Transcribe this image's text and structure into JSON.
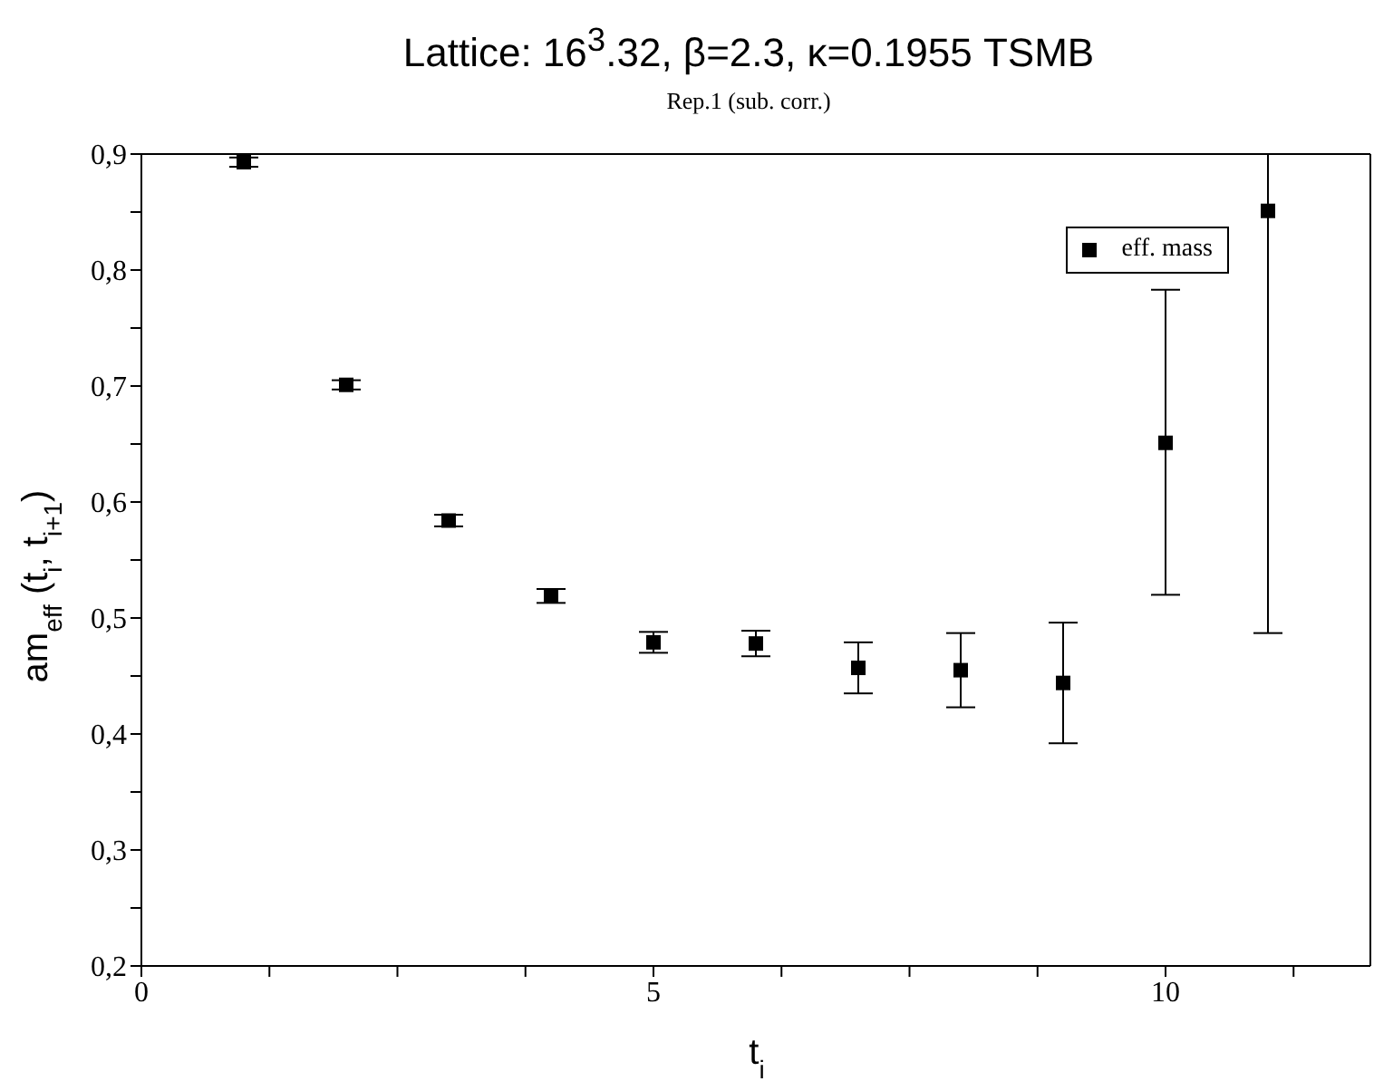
{
  "chart_data": {
    "type": "scatter",
    "title": "Lattice: 16$^{3}$.32, β=2.3, κ=0.1955 TSMB",
    "subtitle": "Rep.1 (sub. corr.)",
    "xlabel": "t$_{i}$",
    "ylabel": "am$_{eff}$ (t$_{i}$, t$_{i+1}$)",
    "x": [
      1,
      2,
      3,
      4,
      5,
      6,
      7,
      8,
      9,
      10,
      11
    ],
    "series": [
      {
        "name": "eff. mass",
        "color": "#000000",
        "values": [
          0.893,
          0.701,
          0.584,
          0.519,
          0.479,
          0.478,
          0.457,
          0.455,
          0.444,
          0.651,
          0.851
        ],
        "errors": [
          0.004,
          0.004,
          0.005,
          0.006,
          0.009,
          0.011,
          0.022,
          0.032,
          0.052,
          [
            0.52,
            0.783
          ],
          [
            0.487,
            0.9
          ]
        ]
      }
    ],
    "xlim": [
      0,
      12
    ],
    "xticks": [
      0,
      {
        "value": 1.25,
        "label": null
      },
      {
        "value": 2.5,
        "label": null
      },
      {
        "value": 3.75,
        "label": null
      },
      5,
      {
        "value": 6.25,
        "label": null
      },
      {
        "value": 7.5,
        "label": null
      },
      {
        "value": 8.75,
        "label": null
      },
      10,
      {
        "value": 11.25,
        "label": null
      }
    ],
    "ylim": [
      0.2,
      0.9
    ],
    "yticks": [
      {
        "value": 0.2,
        "label": "0,2"
      },
      {
        "value": 0.25,
        "label": null
      },
      {
        "value": 0.3,
        "label": "0,3"
      },
      {
        "value": 0.35,
        "label": null
      },
      {
        "value": 0.4,
        "label": "0,4"
      },
      {
        "value": 0.45,
        "label": null
      },
      {
        "value": 0.5,
        "label": "0,5"
      },
      {
        "value": 0.55,
        "label": null
      },
      {
        "value": 0.6,
        "label": "0,6"
      },
      {
        "value": 0.65,
        "label": null
      },
      {
        "value": 0.7,
        "label": "0,7"
      },
      {
        "value": 0.75,
        "label": null
      },
      {
        "value": 0.8,
        "label": "0,8"
      },
      {
        "value": 0.85,
        "label": null
      },
      {
        "value": 0.9,
        "label": "0,9"
      }
    ],
    "grid": false,
    "legend": "top right",
    "marker": "square"
  }
}
